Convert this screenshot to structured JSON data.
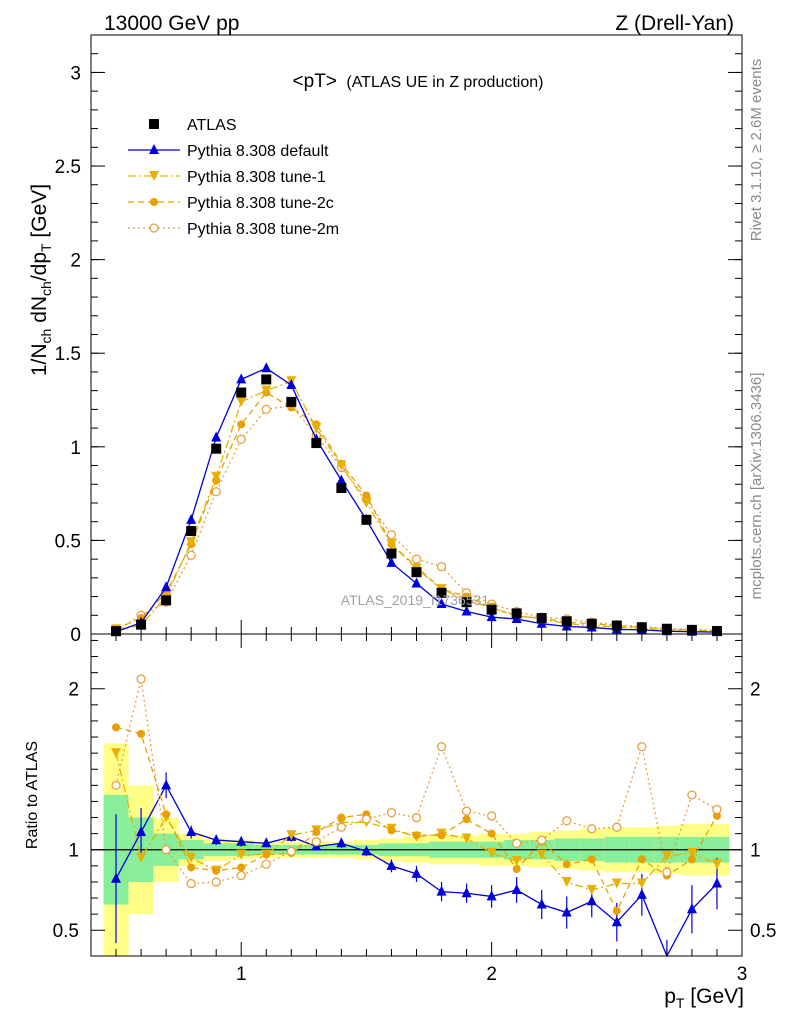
{
  "header": {
    "left": "13000 GeV pp",
    "right": "Z (Drell-Yan)"
  },
  "side_labels": {
    "rivet": "Rivet 3.1.10, ≥ 2.6M events",
    "mcplots": "mcplots.cern.ch [arXiv:1306.3436]"
  },
  "chart_data": [
    {
      "type": "scatter",
      "panel": "main",
      "title_main": "<pT>",
      "title_sub": "(ATLAS UE in Z production)",
      "ylabel": "1/N_ch dN_ch/dp_T [GeV]",
      "watermark": "ATLAS_2019_I1736531",
      "xlim": [
        0.4,
        3.0
      ],
      "ylim": [
        0,
        3.2
      ],
      "y_ticks": [
        "0",
        "0.5",
        "1",
        "1.5",
        "2",
        "2.5",
        "3"
      ],
      "y_tick_values": [
        0,
        0.5,
        1,
        1.5,
        2,
        2.5,
        3
      ],
      "legend_position": "top-left",
      "x": [
        0.5,
        0.6,
        0.7,
        0.8,
        0.9,
        1.0,
        1.1,
        1.2,
        1.3,
        1.4,
        1.5,
        1.6,
        1.7,
        1.8,
        1.9,
        2.0,
        2.1,
        2.2,
        2.3,
        2.4,
        2.5,
        2.6,
        2.7,
        2.8,
        2.9
      ],
      "series": [
        {
          "name": "ATLAS",
          "color": "#000000",
          "marker": "square",
          "line": "none",
          "values": [
            0.015,
            0.05,
            0.18,
            0.55,
            0.99,
            1.29,
            1.36,
            1.24,
            1.02,
            0.78,
            0.61,
            0.43,
            0.33,
            0.22,
            0.17,
            0.13,
            0.11,
            0.085,
            0.068,
            0.055,
            0.045,
            0.036,
            0.028,
            0.022,
            0.016
          ]
        },
        {
          "name": "Pythia 8.308 default",
          "color": "#0000dd",
          "marker": "triangle-up",
          "line": "solid",
          "values": [
            0.012,
            0.06,
            0.25,
            0.61,
            1.05,
            1.36,
            1.42,
            1.33,
            1.04,
            0.82,
            0.61,
            0.38,
            0.27,
            0.16,
            0.12,
            0.09,
            0.08,
            0.055,
            0.04,
            0.035,
            0.025,
            0.022,
            0.015,
            0.012,
            0.01
          ]
        },
        {
          "name": "Pythia 8.308 tune-1",
          "color": "#e8b000",
          "marker": "triangle-down",
          "line": "dashdot",
          "values": [
            0.025,
            0.045,
            0.2,
            0.49,
            0.84,
            1.24,
            1.3,
            1.35,
            1.1,
            0.9,
            0.7,
            0.48,
            0.35,
            0.24,
            0.18,
            0.14,
            0.1,
            0.08,
            0.055,
            0.045,
            0.038,
            0.03,
            0.025,
            0.02,
            0.015
          ]
        },
        {
          "name": "Pythia 8.308 tune-2c",
          "color": "#e8a000",
          "marker": "circle",
          "line": "dashed",
          "values": [
            0.027,
            0.085,
            0.22,
            0.48,
            0.82,
            1.12,
            1.29,
            1.21,
            1.12,
            0.91,
            0.74,
            0.48,
            0.36,
            0.24,
            0.2,
            0.14,
            0.095,
            0.085,
            0.063,
            0.055,
            0.045,
            0.034,
            0.026,
            0.02,
            0.016
          ]
        },
        {
          "name": "Pythia 8.308 tune-2m",
          "color": "#e8a040",
          "marker": "open-circle",
          "line": "dotted",
          "values": [
            0.02,
            0.1,
            0.17,
            0.42,
            0.76,
            1.04,
            1.2,
            1.22,
            1.06,
            0.89,
            0.72,
            0.53,
            0.4,
            0.36,
            0.22,
            0.16,
            0.12,
            0.09,
            0.08,
            0.063,
            0.05,
            0.04,
            0.03,
            0.025,
            0.02
          ]
        }
      ]
    },
    {
      "type": "scatter",
      "panel": "ratio",
      "xlabel": "p_T [GeV]",
      "ylabel": "Ratio to ATLAS",
      "xlim": [
        0.4,
        3.0
      ],
      "ylim": [
        0.34,
        2.34
      ],
      "x_ticks": [
        "1",
        "2",
        "3"
      ],
      "x_tick_values": [
        1,
        2,
        3
      ],
      "y_ticks": [
        "0.5",
        "1",
        "2"
      ],
      "y_tick_values": [
        0.5,
        1,
        2
      ],
      "reference_line": 1,
      "x": [
        0.5,
        0.6,
        0.7,
        0.8,
        0.9,
        1.0,
        1.1,
        1.2,
        1.3,
        1.4,
        1.5,
        1.6,
        1.7,
        1.8,
        1.9,
        2.0,
        2.1,
        2.2,
        2.3,
        2.4,
        2.5,
        2.6,
        2.7,
        2.8,
        2.9
      ],
      "band_stat": [
        0.34,
        0.2,
        0.1,
        0.06,
        0.04,
        0.04,
        0.03,
        0.03,
        0.03,
        0.03,
        0.03,
        0.04,
        0.04,
        0.05,
        0.05,
        0.05,
        0.06,
        0.06,
        0.07,
        0.07,
        0.08,
        0.08,
        0.08,
        0.08,
        0.08
      ],
      "band_total": [
        0.66,
        0.4,
        0.2,
        0.1,
        0.07,
        0.06,
        0.05,
        0.05,
        0.05,
        0.05,
        0.06,
        0.07,
        0.08,
        0.09,
        0.09,
        0.1,
        0.1,
        0.11,
        0.12,
        0.13,
        0.14,
        0.14,
        0.15,
        0.16,
        0.16
      ],
      "series": [
        {
          "name": "Pythia 8.308 default",
          "color": "#0000dd",
          "marker": "triangle-up",
          "line": "solid",
          "values": [
            0.82,
            1.11,
            1.4,
            1.11,
            1.06,
            1.05,
            1.04,
            1.08,
            1.02,
            1.04,
            0.99,
            0.9,
            0.85,
            0.74,
            0.73,
            0.71,
            0.75,
            0.66,
            0.61,
            0.68,
            0.55,
            0.72,
            0.29,
            0.63,
            0.79
          ],
          "errors": [
            0.4,
            0.15,
            0.08,
            0.04,
            0.03,
            0.03,
            0.02,
            0.03,
            0.02,
            0.03,
            0.03,
            0.04,
            0.05,
            0.06,
            0.06,
            0.07,
            0.08,
            0.09,
            0.1,
            0.1,
            0.12,
            0.13,
            0.15,
            0.15,
            0.16
          ]
        },
        {
          "name": "Pythia 8.308 tune-1",
          "color": "#e8b000",
          "marker": "triangle-down",
          "line": "dashdot",
          "values": [
            1.6,
            0.95,
            1.2,
            0.95,
            0.87,
            0.97,
            0.97,
            1.09,
            1.12,
            1.17,
            1.17,
            1.13,
            1.08,
            1.1,
            1.07,
            0.98,
            0.93,
            0.97,
            0.8,
            0.75,
            0.79,
            0.79,
            0.96,
            0.98,
            0.91
          ]
        },
        {
          "name": "Pythia 8.308 tune-2c",
          "color": "#e8a000",
          "marker": "circle",
          "line": "dashed",
          "values": [
            1.76,
            1.72,
            1.22,
            0.89,
            0.87,
            0.89,
            0.97,
            0.98,
            1.11,
            1.2,
            1.22,
            1.12,
            1.09,
            1.09,
            1.19,
            1.1,
            0.88,
            1.05,
            0.91,
            0.94,
            0.62,
            0.94,
            0.84,
            0.94,
            1.21
          ]
        },
        {
          "name": "Pythia 8.308 tune-2m",
          "color": "#e8a040",
          "marker": "open-circle",
          "line": "dotted",
          "values": [
            1.4,
            2.06,
            1.0,
            0.79,
            0.8,
            0.84,
            0.91,
            0.99,
            1.05,
            1.14,
            1.19,
            1.23,
            1.2,
            1.64,
            1.24,
            1.21,
            1.04,
            1.06,
            1.18,
            1.13,
            1.14,
            1.64,
            0.86,
            1.34,
            1.25
          ]
        }
      ]
    }
  ]
}
